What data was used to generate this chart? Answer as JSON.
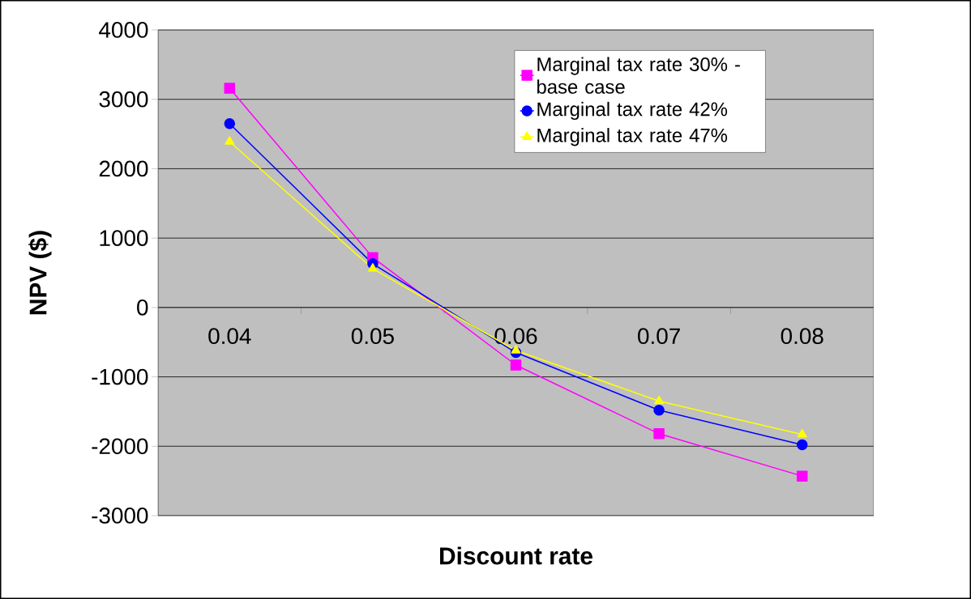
{
  "chart_data": {
    "type": "line",
    "xlabel": "Discount rate",
    "ylabel": "NPV ($)",
    "categories": [
      "0.04",
      "0.05",
      "0.06",
      "0.07",
      "0.08"
    ],
    "ylim": [
      -3000,
      4000
    ],
    "yticks": [
      -3000,
      -2000,
      -1000,
      0,
      1000,
      2000,
      3000,
      4000
    ],
    "grid": "y",
    "legend": "top right",
    "line_style": "solid",
    "series": [
      {
        "name": "Marginal tax rate 30% - base case",
        "color": "#ff00ff",
        "marker": "square",
        "values": [
          3160,
          720,
          -830,
          -1820,
          -2430
        ]
      },
      {
        "name": "Marginal tax rate 42%",
        "color": "#0000ff",
        "marker": "circle",
        "values": [
          2650,
          630,
          -650,
          -1480,
          -1980
        ]
      },
      {
        "name": "Marginal tax rate 47%",
        "color": "#ffff00",
        "marker": "triangle",
        "values": [
          2390,
          560,
          -620,
          -1350,
          -1830
        ]
      }
    ]
  }
}
